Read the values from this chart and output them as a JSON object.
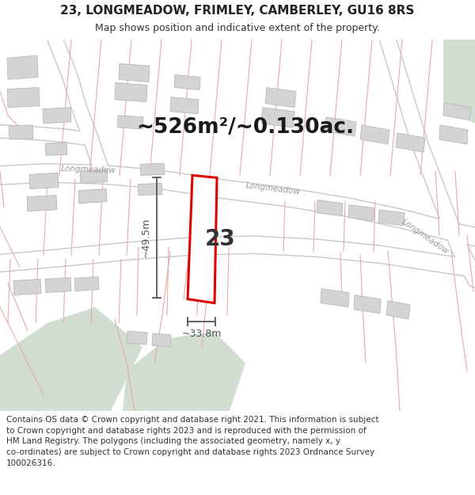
{
  "title_line1": "23, LONGMEADOW, FRIMLEY, CAMBERLEY, GU16 8RS",
  "title_line2": "Map shows position and indicative extent of the property.",
  "area_text": "~526m²/~0.130ac.",
  "label_number": "23",
  "dim_vertical": "~49.5m",
  "dim_horizontal": "~33.8m",
  "footer_text": "Contains OS data © Crown copyright and database right 2021. This information is subject to Crown copyright and database rights 2023 and is reproduced with the permission of HM Land Registry. The polygons (including the associated geometry, namely x, y co-ordinates) are subject to Crown copyright and database rights 2023 Ordnance Survey 100026316.",
  "map_bg": "#f2f0ed",
  "road_color": "#ffffff",
  "road_border_color": "#c8c8c8",
  "building_color": "#d4d4d4",
  "building_border": "#b8b8b8",
  "plot_fill": "#ffffff",
  "plot_border": "#dd0000",
  "green_fill": "#d0ddd0",
  "street_label_color": "#999999",
  "footer_bg": "#ffffff",
  "pink_line_color": "#e8aaaa",
  "dim_line_color": "#555555",
  "title_fontsize": 11,
  "subtitle_fontsize": 9,
  "area_fontsize": 19,
  "number_fontsize": 20,
  "dim_label_fontsize": 9,
  "street_fontsize": 7.5,
  "footer_fontsize": 7.5
}
